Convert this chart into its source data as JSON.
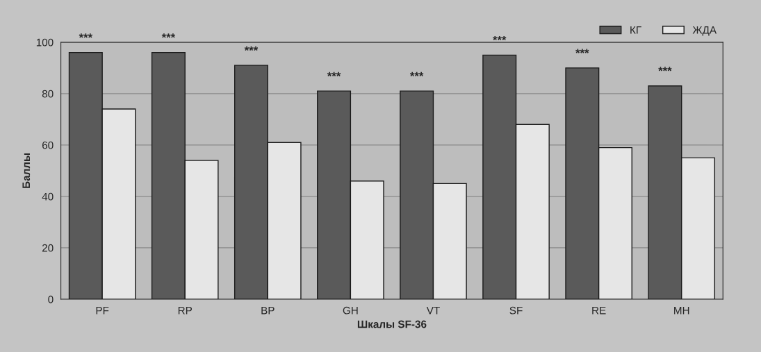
{
  "chart_data": {
    "type": "bar",
    "xlabel": "Шкалы SF-36",
    "ylabel": "Баллы",
    "categories": [
      "PF",
      "RP",
      "BP",
      "GH",
      "VT",
      "SF",
      "RE",
      "MH"
    ],
    "series": [
      {
        "name": "КГ",
        "color": "#5a5a5a",
        "values": [
          96,
          96,
          91,
          81,
          81,
          95,
          90,
          83
        ]
      },
      {
        "name": "ЖДА",
        "color": "#e6e6e6",
        "values": [
          74,
          54,
          61,
          46,
          45,
          68,
          59,
          55
        ]
      }
    ],
    "annotations": [
      "***",
      "***",
      "***",
      "***",
      "***",
      "***",
      "***",
      "***"
    ],
    "ylim": [
      0,
      100
    ],
    "yticks": [
      0,
      20,
      40,
      60,
      80,
      100
    ],
    "grid": "y",
    "legend": "top right"
  }
}
